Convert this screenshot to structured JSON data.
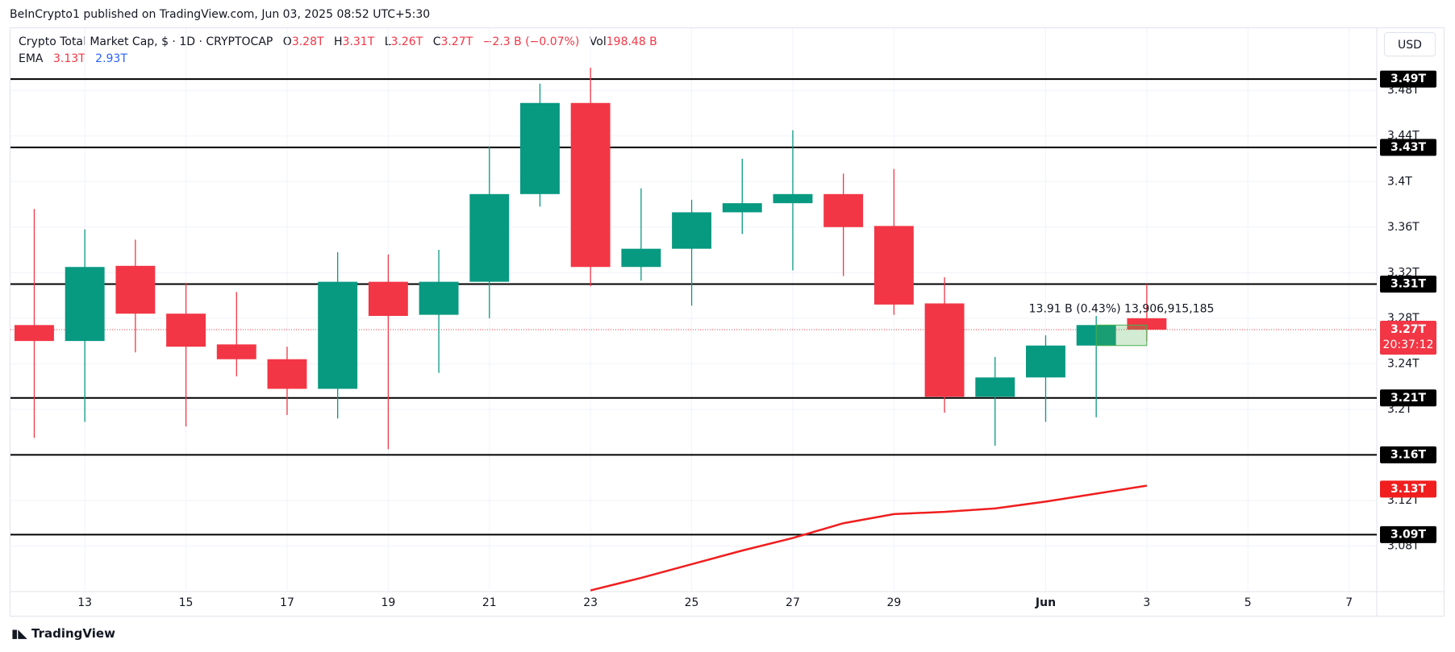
{
  "published": "BeInCrypto1 published on TradingView.com, Jun 03, 2025 08:52 UTC+5:30",
  "header": {
    "title": "Crypto Total Market Cap, $ · 1D · CRYPTOCAP",
    "o_label": "O",
    "o_value": "3.28T",
    "h_label": "H",
    "h_value": "3.31T",
    "l_label": "L",
    "l_value": "3.26T",
    "c_label": "C",
    "c_value": "3.27T",
    "change": "−2.3 B (−0.07%)",
    "vol_label": "Vol",
    "vol_value": "198.48 B",
    "ema_label": "EMA",
    "ema_value_1": "3.13T",
    "ema_value_2": "2.93T"
  },
  "currency_button": "USD",
  "brand": "TradingView",
  "chart_data": {
    "type": "candlestick",
    "categories": [
      null,
      "13",
      null,
      "15",
      null,
      "17",
      null,
      "19",
      null,
      "21",
      null,
      "23",
      null,
      "25",
      null,
      "27",
      null,
      "29",
      null,
      null,
      "Jun",
      null,
      "3",
      null,
      "5",
      null,
      "7"
    ],
    "open": [
      3.274,
      3.26,
      3.326,
      3.284,
      3.257,
      3.244,
      3.218,
      3.312,
      3.283,
      3.312,
      3.389,
      3.469,
      3.325,
      3.341,
      3.373,
      3.381,
      3.389,
      3.361,
      3.293,
      3.211,
      3.228,
      3.256,
      3.28,
      null,
      null,
      null,
      null
    ],
    "high": [
      3.376,
      3.358,
      3.349,
      3.311,
      3.303,
      3.255,
      3.338,
      3.336,
      3.34,
      3.431,
      3.486,
      3.5,
      3.394,
      3.384,
      3.42,
      3.445,
      3.407,
      3.411,
      3.316,
      3.246,
      3.265,
      3.282,
      3.31,
      null,
      null,
      null,
      null
    ],
    "low": [
      3.175,
      3.189,
      3.25,
      3.185,
      3.229,
      3.195,
      3.192,
      3.165,
      3.232,
      3.28,
      3.378,
      3.308,
      3.313,
      3.291,
      3.354,
      3.322,
      3.317,
      3.283,
      3.197,
      3.168,
      3.189,
      3.193,
      3.26,
      null,
      null,
      null,
      null
    ],
    "close": [
      3.26,
      3.325,
      3.284,
      3.255,
      3.244,
      3.218,
      3.312,
      3.282,
      3.312,
      3.389,
      3.469,
      3.325,
      3.341,
      3.373,
      3.381,
      3.389,
      3.36,
      3.292,
      3.211,
      3.228,
      3.256,
      3.274,
      3.27,
      null,
      null,
      null,
      null
    ],
    "up_color": "#089981",
    "down_color": "#f23645",
    "ema": {
      "color": "#f01e1e",
      "values": [
        null,
        null,
        null,
        null,
        null,
        null,
        null,
        null,
        null,
        null,
        null,
        3.041,
        3.052,
        3.064,
        3.076,
        3.087,
        3.1,
        3.108,
        3.11,
        3.113,
        3.119,
        3.126,
        3.133,
        null,
        null,
        null,
        null
      ],
      "last": {
        "value": 3.13,
        "label": "3.13T"
      }
    },
    "ylim": [
      3.04,
      3.535
    ],
    "yticks": [
      {
        "value": 3.08,
        "label": "3.08T"
      },
      {
        "value": 3.12,
        "label": "3.12T"
      },
      {
        "value": 3.2,
        "label": "3.2T"
      },
      {
        "value": 3.24,
        "label": "3.24T"
      },
      {
        "value": 3.28,
        "label": "3.28T"
      },
      {
        "value": 3.32,
        "label": "3.32T"
      },
      {
        "value": 3.36,
        "label": "3.36T"
      },
      {
        "value": 3.4,
        "label": "3.4T"
      },
      {
        "value": 3.44,
        "label": "3.44T"
      },
      {
        "value": 3.48,
        "label": "3.48T"
      }
    ],
    "levels": [
      {
        "value": 3.49,
        "label": "3.49T"
      },
      {
        "value": 3.43,
        "label": "3.43T"
      },
      {
        "value": 3.31,
        "label": "3.31T"
      },
      {
        "value": 3.21,
        "label": "3.21T"
      },
      {
        "value": 3.16,
        "label": "3.16T"
      },
      {
        "value": 3.09,
        "label": "3.09T"
      }
    ],
    "current_price": {
      "value": 3.27,
      "label": "3.27T",
      "countdown": "20:37:12"
    },
    "measure": {
      "label": "13.91 B (0.43%) 13,906,915,185"
    }
  }
}
